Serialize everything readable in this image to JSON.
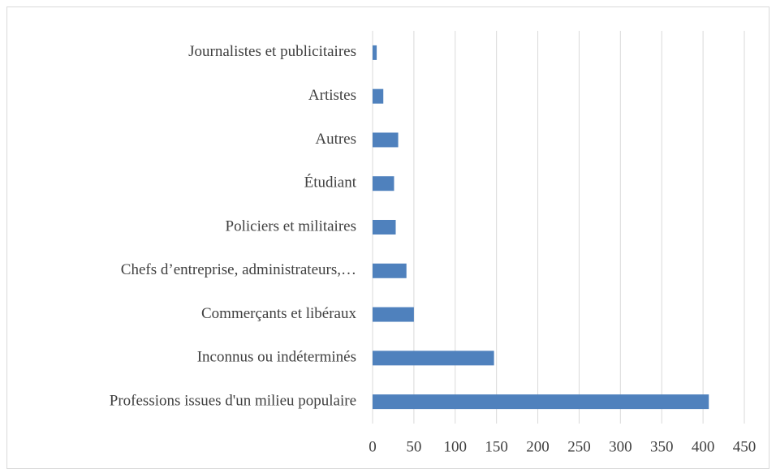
{
  "chart_data": {
    "type": "bar",
    "orientation": "horizontal",
    "categories": [
      "Professions issues d'un milieu populaire",
      "Inconnus ou indéterminés",
      "Commerçants et libéraux",
      "Chefs d’entreprise, administrateurs,…",
      "Policiers et militaires",
      "Étudiant",
      "Autres",
      "Artistes",
      "Journalistes et publicitaires"
    ],
    "values": [
      407,
      147,
      50,
      41,
      28,
      26,
      31,
      13,
      5
    ],
    "color": "#4f81bd",
    "xlim": [
      0,
      450
    ],
    "xticks": [
      0,
      50,
      100,
      150,
      200,
      250,
      300,
      350,
      400,
      450
    ],
    "grid": true
  }
}
